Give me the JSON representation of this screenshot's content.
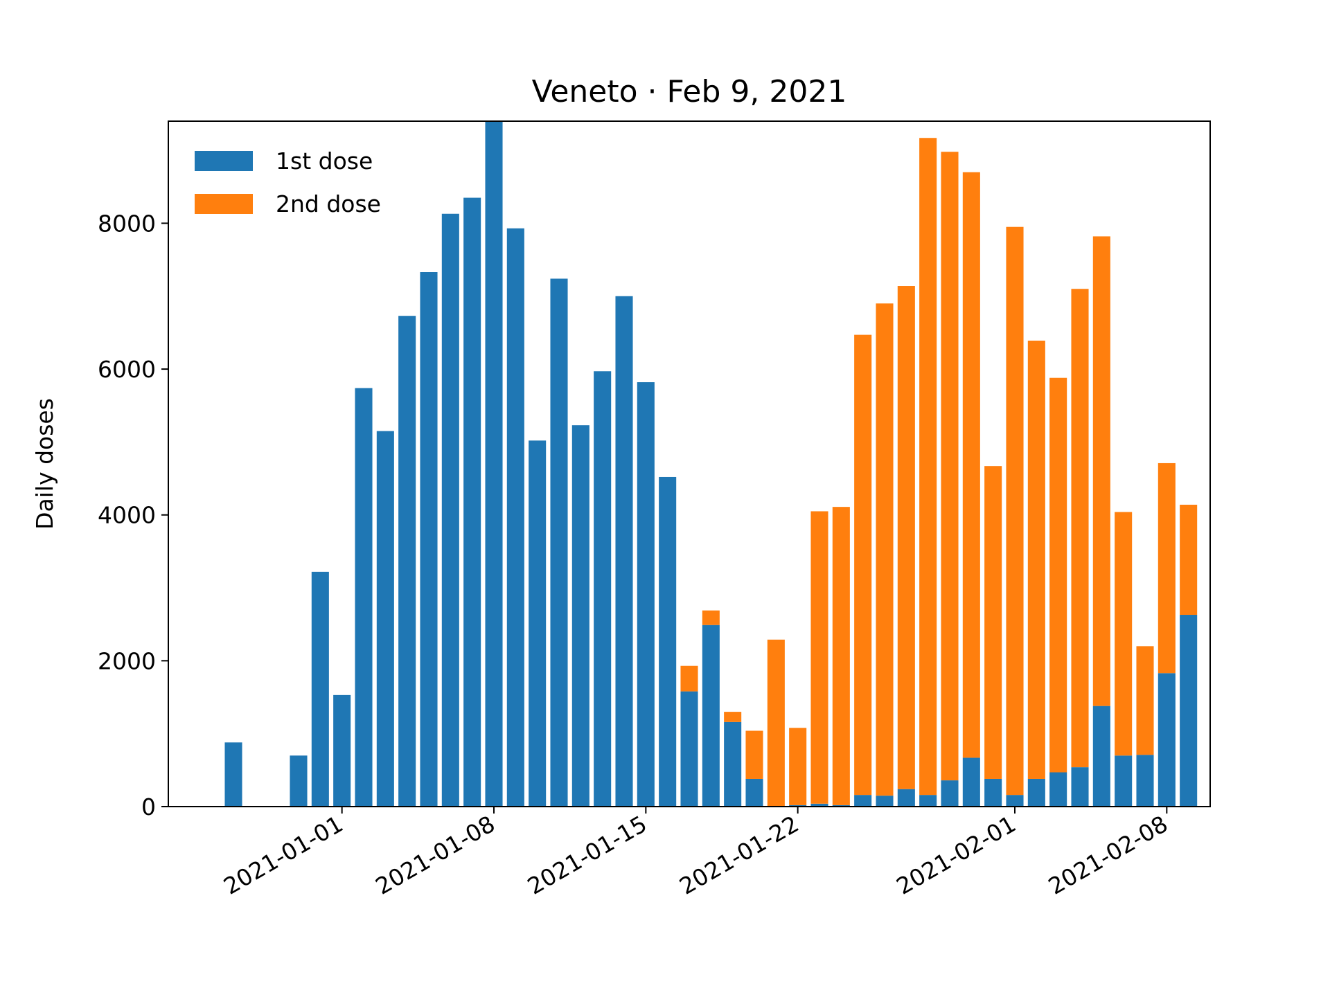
{
  "chart_data": {
    "type": "bar",
    "stacked": true,
    "title": "Veneto · Feb 9, 2021",
    "xlabel": "",
    "ylabel": "Daily doses",
    "ylim": [
      0,
      9400
    ],
    "xlim": [
      "2020-12-24",
      "2021-02-10"
    ],
    "yticks": [
      0,
      2000,
      4000,
      6000,
      8000
    ],
    "xticks": [
      "2021-01-01",
      "2021-01-08",
      "2021-01-15",
      "2021-01-22",
      "2021-02-01",
      "2021-02-08"
    ],
    "legend_position": "upper-left",
    "grid": false,
    "x": [
      "2020-12-27",
      "2020-12-28",
      "2020-12-29",
      "2020-12-30",
      "2020-12-31",
      "2021-01-01",
      "2021-01-02",
      "2021-01-03",
      "2021-01-04",
      "2021-01-05",
      "2021-01-06",
      "2021-01-07",
      "2021-01-08",
      "2021-01-09",
      "2021-01-10",
      "2021-01-11",
      "2021-01-12",
      "2021-01-13",
      "2021-01-14",
      "2021-01-15",
      "2021-01-16",
      "2021-01-17",
      "2021-01-18",
      "2021-01-19",
      "2021-01-20",
      "2021-01-21",
      "2021-01-22",
      "2021-01-23",
      "2021-01-24",
      "2021-01-25",
      "2021-01-26",
      "2021-01-27",
      "2021-01-28",
      "2021-01-29",
      "2021-01-30",
      "2021-01-31",
      "2021-02-01",
      "2021-02-02",
      "2021-02-03",
      "2021-02-04",
      "2021-02-05",
      "2021-02-06",
      "2021-02-07",
      "2021-02-08",
      "2021-02-09"
    ],
    "series": [
      {
        "name": "1st dose",
        "color": "#1f77b4",
        "values": [
          880,
          0,
          0,
          700,
          3220,
          1530,
          5740,
          5150,
          6730,
          7330,
          8130,
          8350,
          9400,
          7930,
          5020,
          7240,
          5230,
          5970,
          7000,
          5820,
          4520,
          1580,
          2490,
          1160,
          380,
          0,
          20,
          40,
          20,
          160,
          150,
          240,
          160,
          360,
          670,
          380,
          160,
          380,
          470,
          540,
          1380,
          700,
          710,
          1830,
          2630
        ]
      },
      {
        "name": "2nd dose",
        "color": "#ff7f0e",
        "values": [
          0,
          0,
          0,
          0,
          0,
          0,
          0,
          0,
          0,
          0,
          0,
          0,
          0,
          0,
          0,
          0,
          0,
          0,
          0,
          0,
          0,
          350,
          200,
          140,
          660,
          2290,
          1060,
          4010,
          4090,
          6310,
          6750,
          6900,
          9010,
          8620,
          8030,
          4290,
          7790,
          6010,
          5410,
          6560,
          6440,
          3340,
          1490,
          2880,
          1510
        ]
      }
    ]
  }
}
